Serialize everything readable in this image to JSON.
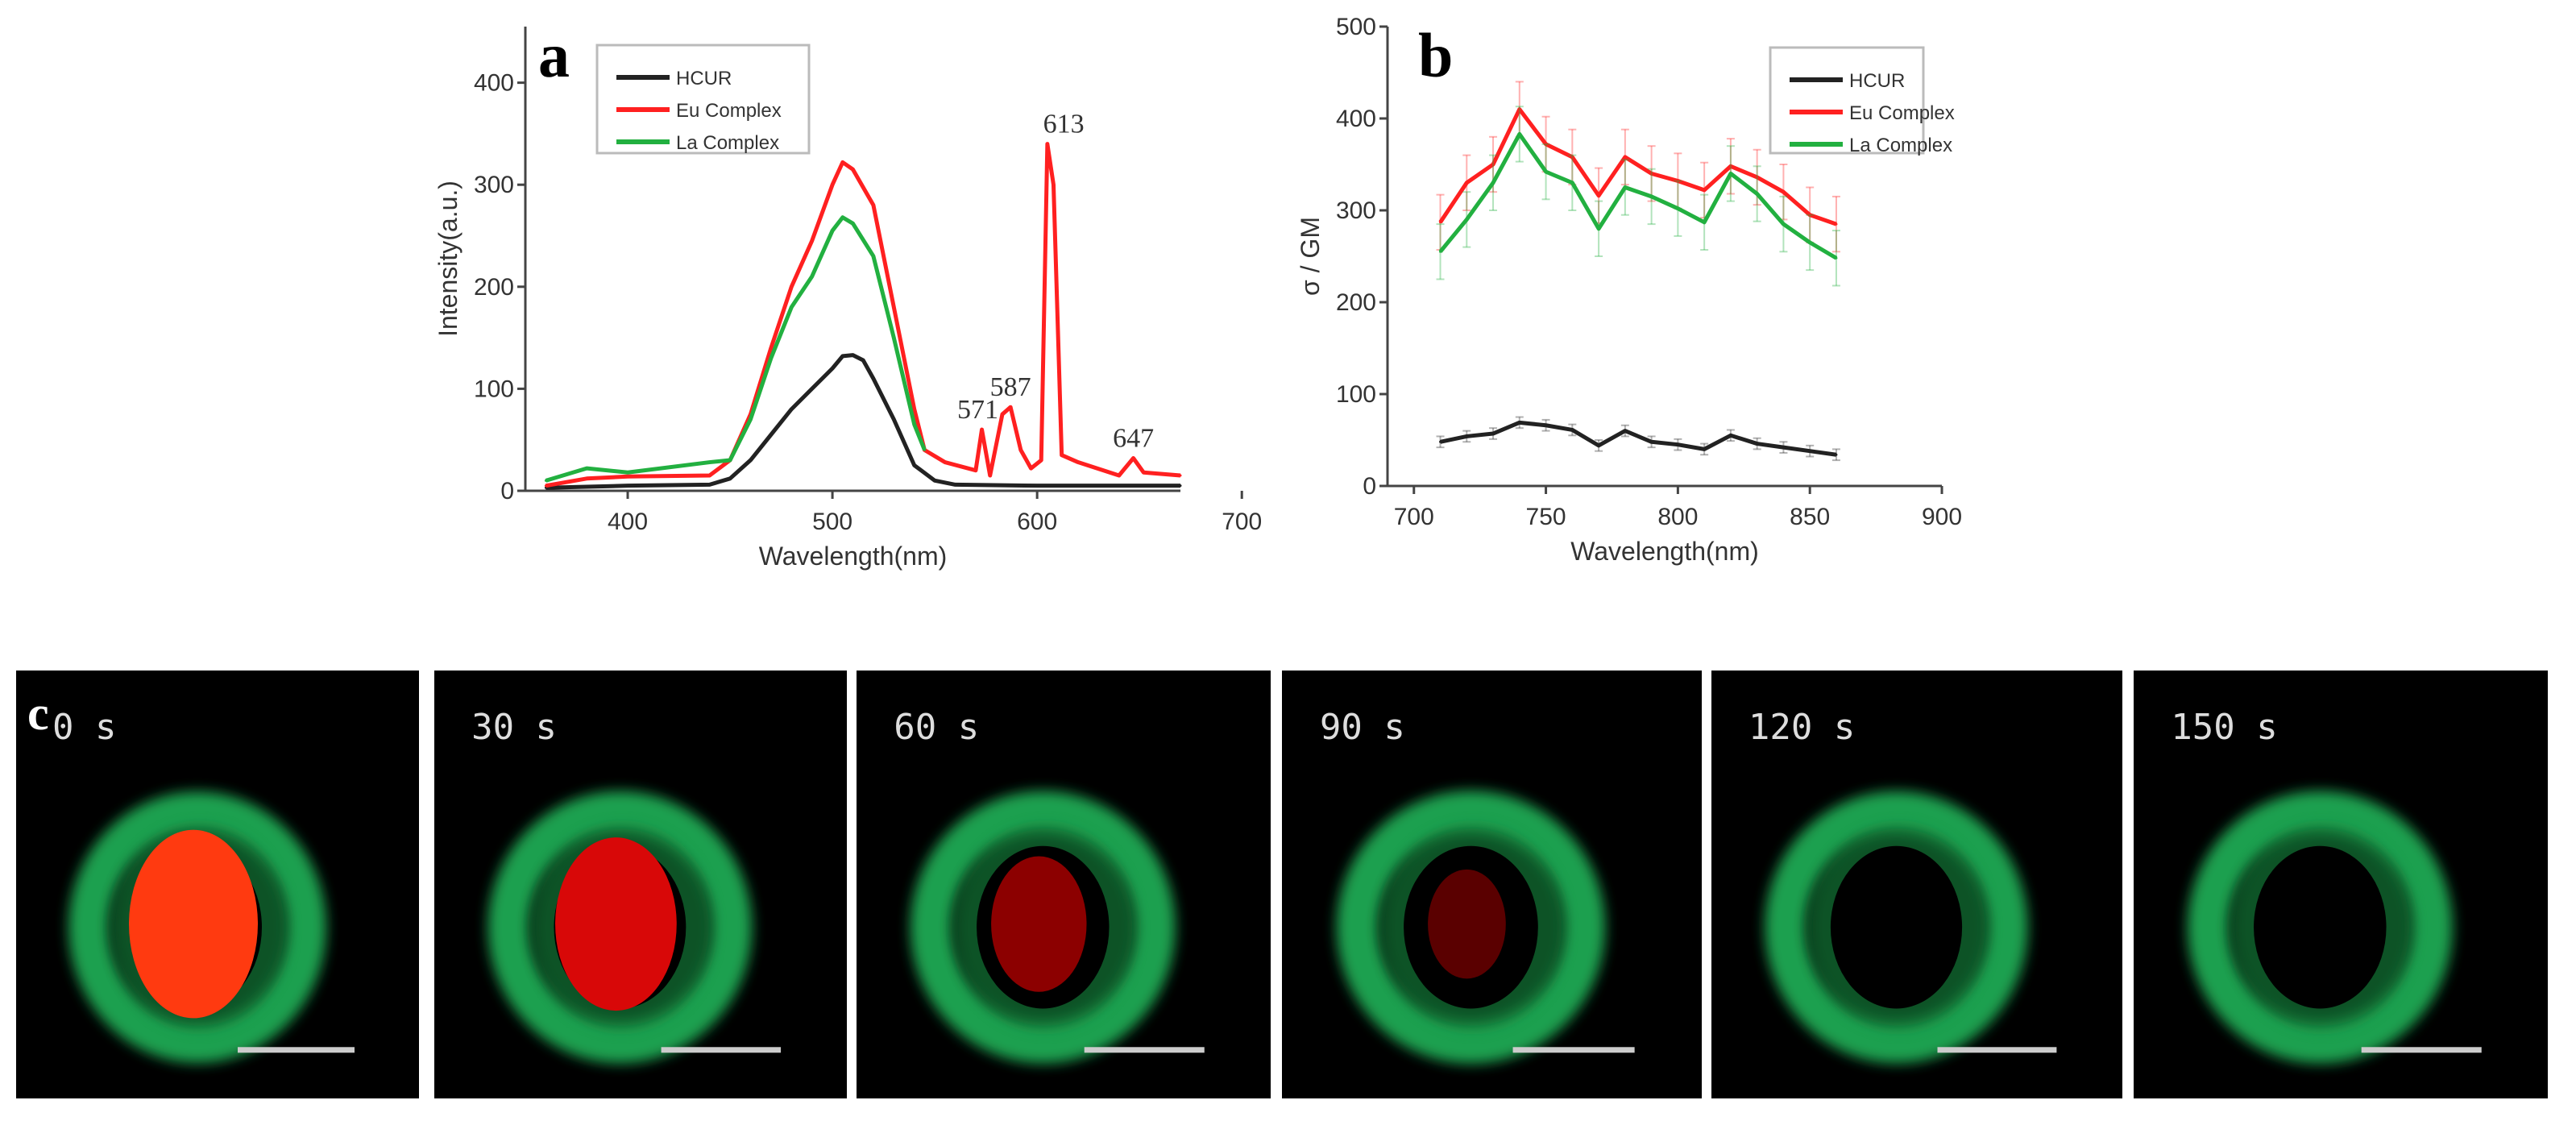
{
  "chart_data": [
    {
      "panel": "a",
      "type": "line",
      "xlabel": "Wavelength(nm)",
      "ylabel": "Intensity(a.u.)",
      "xlim": [
        350,
        700
      ],
      "ylim": [
        0,
        450
      ],
      "xticks": [
        400,
        500,
        600,
        700
      ],
      "yticks": [
        0,
        100,
        200,
        300,
        400
      ],
      "legend": {
        "placement": "top-left",
        "entries": [
          "HCUR",
          "Eu Complex",
          "La Complex"
        ]
      },
      "annotations": [
        {
          "text": "571",
          "x": 571,
          "y": 60
        },
        {
          "text": "587",
          "x": 587,
          "y": 82
        },
        {
          "text": "613",
          "x": 613,
          "y": 340
        },
        {
          "text": "647",
          "x": 647,
          "y": 32
        }
      ],
      "series": [
        {
          "name": "HCUR",
          "color": "#222222",
          "x": [
            360,
            400,
            440,
            450,
            460,
            470,
            480,
            490,
            500,
            505,
            510,
            515,
            520,
            530,
            540,
            550,
            560,
            600,
            670
          ],
          "y": [
            3,
            5,
            6,
            12,
            30,
            55,
            80,
            100,
            120,
            132,
            133,
            128,
            110,
            70,
            25,
            10,
            6,
            5,
            5
          ]
        },
        {
          "name": "Eu Complex",
          "color": "#ff2020",
          "x": [
            360,
            380,
            400,
            440,
            450,
            460,
            470,
            480,
            490,
            500,
            505,
            510,
            520,
            530,
            540,
            545,
            555,
            570,
            573,
            577,
            583,
            587,
            592,
            597,
            602,
            605,
            608,
            612,
            620,
            640,
            647,
            652,
            670
          ],
          "y": [
            5,
            12,
            14,
            15,
            30,
            75,
            140,
            200,
            245,
            300,
            322,
            315,
            280,
            180,
            80,
            40,
            28,
            20,
            60,
            15,
            75,
            82,
            40,
            22,
            30,
            340,
            300,
            35,
            28,
            15,
            32,
            18,
            15
          ]
        },
        {
          "name": "La Complex",
          "color": "#22b040",
          "x": [
            360,
            380,
            400,
            440,
            450,
            460,
            470,
            480,
            490,
            500,
            505,
            510,
            520,
            530,
            540,
            545
          ],
          "y": [
            10,
            22,
            18,
            28,
            30,
            70,
            130,
            180,
            210,
            255,
            268,
            262,
            230,
            150,
            65,
            40
          ]
        }
      ]
    },
    {
      "panel": "b",
      "type": "line",
      "xlabel": "Wavelength(nm)",
      "ylabel": "σ / GM",
      "xlim": [
        690,
        900
      ],
      "ylim": [
        0,
        500
      ],
      "xticks": [
        700,
        750,
        800,
        850,
        900
      ],
      "yticks": [
        0,
        100,
        200,
        300,
        400,
        500
      ],
      "legend": {
        "placement": "top-right",
        "entries": [
          "HCUR",
          "Eu Complex",
          "La Complex"
        ]
      },
      "x": [
        710,
        720,
        730,
        740,
        750,
        760,
        770,
        780,
        790,
        800,
        810,
        820,
        830,
        840,
        850,
        860
      ],
      "series": [
        {
          "name": "HCUR",
          "color": "#222222",
          "values": [
            48,
            54,
            57,
            69,
            66,
            61,
            44,
            60,
            48,
            45,
            40,
            55,
            46,
            42,
            38,
            34
          ],
          "error": 6
        },
        {
          "name": "Eu Complex",
          "color": "#ff2020",
          "values": [
            287,
            330,
            350,
            410,
            372,
            358,
            316,
            358,
            340,
            332,
            322,
            348,
            336,
            320,
            295,
            285
          ],
          "error": 30
        },
        {
          "name": "La Complex",
          "color": "#22b040",
          "values": [
            255,
            290,
            330,
            383,
            342,
            330,
            280,
            325,
            315,
            302,
            287,
            340,
            318,
            285,
            265,
            248
          ],
          "error": 30
        }
      ]
    }
  ],
  "panel_c": {
    "letter": "c",
    "frames": [
      {
        "time": "0 s",
        "core": "#ff3a10",
        "core_scale": 1.0
      },
      {
        "time": "30 s",
        "core": "#d80808",
        "core_scale": 0.92
      },
      {
        "time": "60 s",
        "core": "#8c0000",
        "core_scale": 0.72
      },
      {
        "time": "90 s",
        "core": "#5a0000",
        "core_scale": 0.58
      },
      {
        "time": "120 s",
        "core": "#000000",
        "core_scale": 0
      },
      {
        "time": "150 s",
        "core": "#000000",
        "core_scale": 0
      }
    ]
  },
  "labels": {
    "a": "a",
    "b": "b"
  }
}
